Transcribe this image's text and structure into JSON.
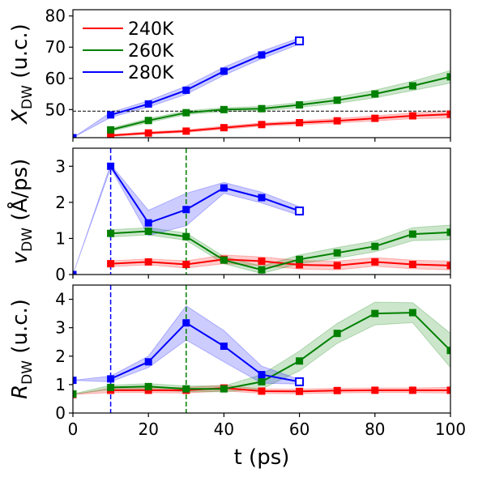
{
  "colors": {
    "240K": "#ff0000",
    "260K": "#008000",
    "280K": "#0000ff"
  },
  "chart_data": [
    {
      "type": "line",
      "ylabel_main": "X",
      "ylabel_sub": "DW",
      "ylabel_tail": " (u.c.)",
      "xlim": [
        0,
        100
      ],
      "ylim": [
        41,
        82
      ],
      "yticks": [
        50,
        60,
        70,
        80
      ],
      "grid": false,
      "legend": "top-left",
      "hline": {
        "y": 49.5,
        "style": "dashed",
        "color": "#000000"
      },
      "vlines": [],
      "series": [
        {
          "name": "240K",
          "color": "#ff0000",
          "x": [
            0,
            10,
            20,
            30,
            40,
            50,
            60,
            70,
            80,
            90,
            100
          ],
          "y": [
            null,
            41.7,
            42.5,
            43.1,
            44.2,
            45.2,
            45.8,
            46.4,
            47.2,
            48.0,
            48.5
          ],
          "band": [
            null,
            0.3,
            0.4,
            0.4,
            0.5,
            0.5,
            0.6,
            0.7,
            0.8,
            0.9,
            1.2
          ],
          "open_last": false
        },
        {
          "name": "260K",
          "color": "#008000",
          "x": [
            0,
            10,
            20,
            30,
            40,
            50,
            60,
            70,
            80,
            90,
            100
          ],
          "y": [
            null,
            43.5,
            46.5,
            49.0,
            50.0,
            50.3,
            51.5,
            53.0,
            55.0,
            57.6,
            60.5
          ],
          "band": [
            null,
            0.5,
            0.6,
            0.6,
            0.6,
            0.7,
            0.8,
            1.0,
            1.2,
            1.5,
            2.0
          ],
          "open_last": false
        },
        {
          "name": "280K",
          "color": "#0000ff",
          "x": [
            0,
            10,
            20,
            30,
            40,
            50,
            60
          ],
          "y": [
            41.0,
            48.3,
            51.8,
            56.2,
            62.3,
            67.5,
            72.0
          ],
          "band": [
            0,
            0.8,
            1.0,
            1.3,
            1.3,
            1.2,
            1.0
          ],
          "open_last": true
        }
      ]
    },
    {
      "type": "line",
      "ylabel_main": "v",
      "ylabel_sub": "DW",
      "ylabel_tail": " (Å/ps)",
      "xlim": [
        0,
        100
      ],
      "ylim": [
        0,
        3.5
      ],
      "yticks": [
        0,
        1,
        2,
        3
      ],
      "grid": false,
      "vlines": [
        {
          "x": 10,
          "color": "#0000ff"
        },
        {
          "x": 30,
          "color": "#008000"
        }
      ],
      "series": [
        {
          "name": "240K",
          "color": "#ff0000",
          "x": [
            10,
            20,
            30,
            40,
            50,
            60,
            70,
            80,
            90,
            100
          ],
          "y": [
            0.3,
            0.35,
            0.28,
            0.42,
            0.37,
            0.27,
            0.25,
            0.35,
            0.28,
            0.25
          ],
          "band": [
            0.08,
            0.08,
            0.1,
            0.12,
            0.12,
            0.12,
            0.12,
            0.12,
            0.12,
            0.12
          ],
          "open_last": false
        },
        {
          "name": "260K",
          "color": "#008000",
          "x": [
            10,
            20,
            30,
            40,
            50,
            60,
            70,
            80,
            90,
            100
          ],
          "y": [
            1.14,
            1.2,
            1.05,
            0.4,
            0.13,
            0.42,
            0.6,
            0.78,
            1.12,
            1.17
          ],
          "band": [
            0.1,
            0.1,
            0.1,
            0.1,
            0.1,
            0.12,
            0.15,
            0.15,
            0.18,
            0.2
          ],
          "open_last": false
        },
        {
          "name": "280K",
          "color": "#0000ff",
          "x": [
            0,
            10,
            20,
            30,
            40,
            50,
            60
          ],
          "y": [
            0.0,
            3.0,
            1.43,
            1.8,
            2.4,
            2.13,
            1.76
          ],
          "band": [
            0,
            0.05,
            0.35,
            0.45,
            0.15,
            0.15,
            0.12
          ],
          "open_last": true
        }
      ]
    },
    {
      "type": "line",
      "ylabel_main": "R",
      "ylabel_sub": "DW",
      "ylabel_tail": " (u.c.)",
      "xlabel": "t (ps)",
      "xlim": [
        0,
        100
      ],
      "ylim": [
        0,
        4.5
      ],
      "yticks": [
        0,
        1,
        2,
        3,
        4
      ],
      "xticks": [
        0,
        20,
        40,
        60,
        80,
        100
      ],
      "grid": false,
      "vlines": [
        {
          "x": 10,
          "color": "#0000ff"
        },
        {
          "x": 30,
          "color": "#008000"
        }
      ],
      "series": [
        {
          "name": "240K",
          "color": "#ff0000",
          "x": [
            0,
            10,
            20,
            30,
            40,
            50,
            60,
            70,
            80,
            90,
            100
          ],
          "y": [
            0.65,
            0.8,
            0.8,
            0.8,
            0.88,
            0.77,
            0.76,
            0.79,
            0.8,
            0.8,
            0.8
          ],
          "band": [
            0,
            0.08,
            0.08,
            0.1,
            0.1,
            0.08,
            0.08,
            0.08,
            0.08,
            0.08,
            0.1
          ],
          "open_last": false
        },
        {
          "name": "260K",
          "color": "#008000",
          "x": [
            0,
            10,
            20,
            30,
            40,
            50,
            60,
            70,
            80,
            90,
            100
          ],
          "y": [
            0.67,
            0.9,
            0.93,
            0.85,
            0.85,
            1.1,
            1.83,
            2.8,
            3.5,
            3.53,
            2.2
          ],
          "band": [
            0,
            0.08,
            0.1,
            0.1,
            0.1,
            0.25,
            0.35,
            0.35,
            0.4,
            0.35,
            0.6
          ],
          "open_last": false
        },
        {
          "name": "280K",
          "color": "#0000ff",
          "x": [
            0,
            10,
            20,
            30,
            40,
            50,
            60
          ],
          "y": [
            1.15,
            1.2,
            1.8,
            3.17,
            2.35,
            1.35,
            1.1
          ],
          "band": [
            0,
            0.1,
            0.2,
            0.6,
            0.55,
            0.3,
            0.08
          ],
          "open_last": true
        }
      ]
    }
  ]
}
